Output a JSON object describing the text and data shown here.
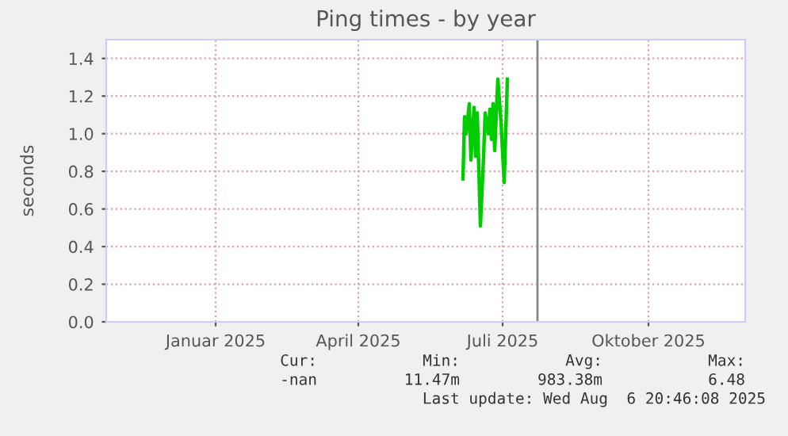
{
  "chart_data": {
    "type": "line",
    "title": "Ping times - by year",
    "ylabel": "seconds",
    "x": [
      "2025-06-20",
      "2025-06-21",
      "2025-06-22",
      "2025-06-24",
      "2025-06-25",
      "2025-06-27",
      "2025-06-28",
      "2025-06-29",
      "2025-07-01",
      "2025-07-03",
      "2025-07-04",
      "2025-07-06",
      "2025-07-07",
      "2025-07-08",
      "2025-07-09",
      "2025-07-10",
      "2025-07-12",
      "2025-07-14",
      "2025-07-16",
      "2025-07-18"
    ],
    "series": [
      {
        "color": "#00cc00",
        "values": [
          0.76,
          1.09,
          1.0,
          1.16,
          0.86,
          1.14,
          0.88,
          1.11,
          0.51,
          0.88,
          1.11,
          1.0,
          1.13,
          0.97,
          1.16,
          0.91,
          1.29,
          1.06,
          0.74,
          1.29
        ]
      }
    ],
    "xlim": [
      "2024-11-07",
      "2025-12-15"
    ],
    "xticks": [
      {
        "value": "2025-01-15",
        "label": "Januar 2025"
      },
      {
        "value": "2025-04-15",
        "label": "April 2025"
      },
      {
        "value": "2025-07-15",
        "label": "Juli 2025"
      },
      {
        "value": "2025-10-15",
        "label": "Oktober 2025"
      }
    ],
    "ylim": [
      0,
      1.5
    ],
    "yticks": [
      {
        "value": 0,
        "label": "0.0"
      },
      {
        "value": 0.2,
        "label": "0.2"
      },
      {
        "value": 0.4,
        "label": "0.4"
      },
      {
        "value": 0.6,
        "label": "0.6"
      },
      {
        "value": 0.8,
        "label": "0.8"
      },
      {
        "value": 1.0,
        "label": "1.0"
      },
      {
        "value": 1.2,
        "label": "1.2"
      },
      {
        "value": 1.4,
        "label": "1.4"
      }
    ],
    "ref_lines": [
      {
        "axis": "x",
        "value": "2025-08-06",
        "color": "#888888"
      }
    ],
    "grid": true,
    "annotations": [
      "Cur:",
      "-nan",
      "Min:",
      "11.47m",
      "Avg:",
      "983.38m",
      "Max:",
      "6.48",
      "Last update: Wed Aug  6 20:46:08 2025"
    ]
  }
}
